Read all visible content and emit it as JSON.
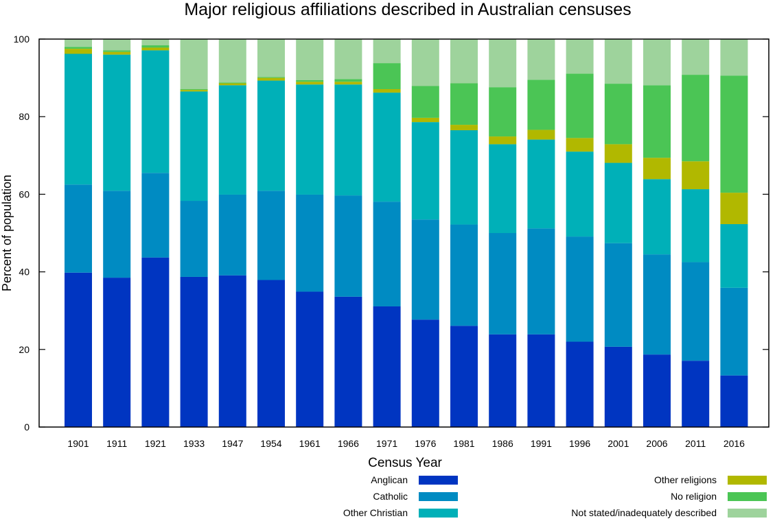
{
  "chart_data": {
    "type": "bar",
    "stacked": true,
    "title": "Major religious affiliations described in Australian censuses",
    "xlabel": "Census Year",
    "ylabel": "Percent of population",
    "ylim": [
      0,
      100
    ],
    "yticks": [
      0,
      20,
      40,
      60,
      80,
      100
    ],
    "grid": false,
    "legend_position": "bottom",
    "categories": [
      "1901",
      "1911",
      "1921",
      "1933",
      "1947",
      "1954",
      "1961",
      "1966",
      "1971",
      "1976",
      "1981",
      "1986",
      "1991",
      "1996",
      "2001",
      "2006",
      "2011",
      "2016"
    ],
    "series": [
      {
        "name": "Anglican",
        "color": "#0035c1",
        "values": [
          39.8,
          38.5,
          43.7,
          38.7,
          39.1,
          37.9,
          34.9,
          33.6,
          31.1,
          27.7,
          26.1,
          23.9,
          23.9,
          22.0,
          20.7,
          18.7,
          17.1,
          13.3
        ]
      },
      {
        "name": "Catholic",
        "color": "#008bc2",
        "values": [
          22.7,
          22.4,
          21.8,
          19.6,
          20.8,
          23.0,
          25.0,
          26.1,
          27.0,
          25.8,
          26.1,
          26.1,
          27.3,
          27.1,
          26.7,
          25.8,
          25.4,
          22.6
        ]
      },
      {
        "name": "Other Christian",
        "color": "#00b0b8",
        "values": [
          33.7,
          35.1,
          31.6,
          28.2,
          28.2,
          28.4,
          28.4,
          28.6,
          28.1,
          25.1,
          24.3,
          22.9,
          22.9,
          21.9,
          20.7,
          19.4,
          18.8,
          16.4
        ]
      },
      {
        "name": "Other religions",
        "color": "#b1b800",
        "values": [
          1.3,
          0.7,
          0.7,
          0.4,
          0.5,
          0.7,
          0.7,
          0.7,
          0.9,
          1.1,
          1.4,
          2.0,
          2.5,
          3.5,
          4.8,
          5.5,
          7.2,
          8.1
        ]
      },
      {
        "name": "No religion",
        "color": "#4bc555",
        "values": [
          0.5,
          0.4,
          0.6,
          0.2,
          0.2,
          0.2,
          0.4,
          0.7,
          6.7,
          8.2,
          10.7,
          12.7,
          12.9,
          16.6,
          15.6,
          18.7,
          22.3,
          30.2
        ]
      },
      {
        "name": "Not stated/inadequately described",
        "color": "#9ed39c",
        "values": [
          2.0,
          2.9,
          1.6,
          12.9,
          11.2,
          9.8,
          10.6,
          10.3,
          6.2,
          12.1,
          11.4,
          12.4,
          10.5,
          8.9,
          11.5,
          11.9,
          9.2,
          9.4
        ]
      }
    ]
  }
}
